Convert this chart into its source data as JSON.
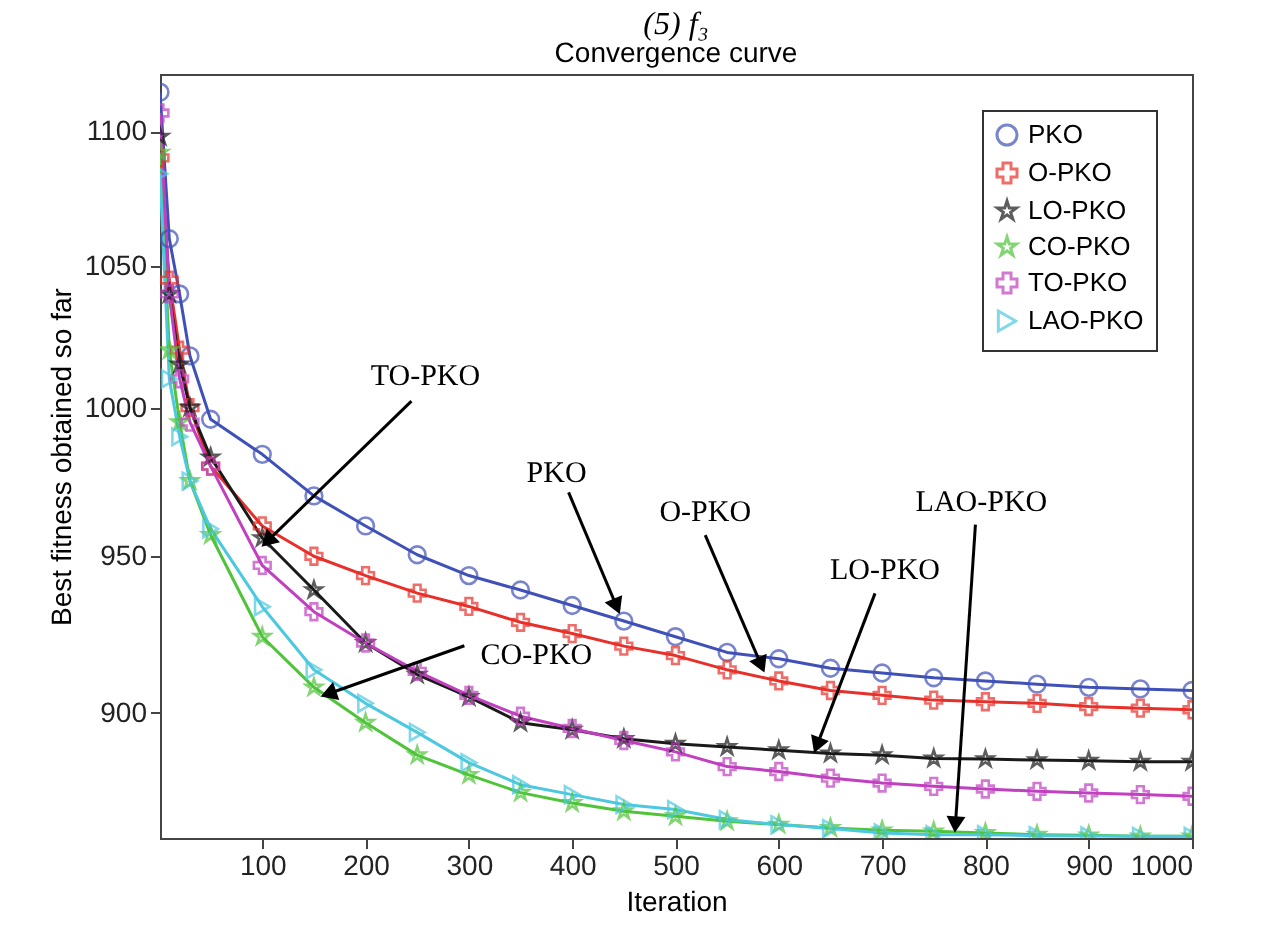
{
  "chart_data": {
    "type": "line",
    "title": "(5) f₃",
    "subtitle": "Convergence curve",
    "xlabel": "Iteration",
    "ylabel": "Best fitness obtained so far",
    "xlim": [
      1,
      1000
    ],
    "xticks": [
      100,
      200,
      300,
      400,
      500,
      600,
      700,
      800,
      900,
      1000
    ],
    "ylim": [
      862,
      1122
    ],
    "yticks": [
      900,
      950,
      1000,
      1050,
      1100
    ],
    "log": "y",
    "grid": false,
    "legend": "top right",
    "x": [
      1,
      10,
      20,
      30,
      50,
      100,
      150,
      200,
      250,
      300,
      350,
      400,
      450,
      500,
      550,
      600,
      650,
      700,
      750,
      800,
      850,
      900,
      950,
      1000
    ],
    "series": [
      {
        "name": "PKO",
        "color": "#3f51b8",
        "marker": "circle",
        "values": [
          1115,
          1060,
          1040,
          1018,
          996,
          984,
          970,
          960,
          950.5,
          943.7,
          939,
          934,
          929,
          924,
          919,
          917,
          914,
          912.5,
          911,
          910,
          909,
          908,
          907.5,
          907
        ]
      },
      {
        "name": "O-PKO",
        "color": "#e8302a",
        "marker": "cross",
        "values": [
          1090,
          1045,
          1020,
          1000,
          980,
          960,
          950,
          943.7,
          938,
          933.7,
          928.6,
          925,
          921,
          918,
          913.5,
          910,
          907,
          905.5,
          904,
          903.5,
          903,
          902,
          901.5,
          901
        ]
      },
      {
        "name": "LO-PKO",
        "color": "#1a1a1a",
        "marker": "star",
        "values": [
          1098,
          1040,
          1015,
          1000,
          983,
          956,
          939,
          922,
          912,
          905,
          897,
          894.8,
          892,
          890.5,
          889.5,
          888.5,
          887.5,
          887,
          886,
          885.8,
          885.5,
          885.3,
          885,
          885
        ]
      },
      {
        "name": "CO-PKO",
        "color": "#4fc43a",
        "marker": "star",
        "values": [
          1092,
          1020,
          995,
          975,
          957,
          924,
          908,
          897,
          887,
          881,
          875.6,
          872.5,
          870,
          868.5,
          867,
          866,
          865,
          864.3,
          864,
          863.5,
          863,
          862.8,
          862.5,
          862.5
        ]
      },
      {
        "name": "TO-PKO",
        "color": "#c040c0",
        "marker": "cross",
        "values": [
          1107,
          1040,
          1010,
          995,
          980,
          947,
          932,
          922,
          913,
          905.5,
          899,
          895.2,
          891.5,
          888,
          883.5,
          882,
          880,
          878.5,
          877.5,
          876.7,
          876,
          875.5,
          875,
          874.5
        ]
      },
      {
        "name": "LAO-PKO",
        "color": "#4cc8e0",
        "marker": "triangle",
        "values": [
          1084,
          1010,
          990,
          975,
          959,
          933.6,
          913.5,
          903,
          894,
          884.7,
          878,
          875,
          872,
          870.5,
          867.5,
          866,
          864.8,
          863.5,
          863,
          863,
          862.7,
          862.6,
          862.5,
          862.5
        ]
      }
    ],
    "annotations": [
      {
        "text": "TO-PKO",
        "x": 105,
        "y": 955
      },
      {
        "text": "PKO",
        "x": 443,
        "y": 933.7
      },
      {
        "text": "O-PKO",
        "x": 583,
        "y": 915
      },
      {
        "text": "LO-PKO",
        "x": 637,
        "y": 890
      },
      {
        "text": "LAO-PKO",
        "x": 771,
        "y": 866
      },
      {
        "text": "CO-PKO",
        "x": 164,
        "y": 906
      }
    ]
  }
}
